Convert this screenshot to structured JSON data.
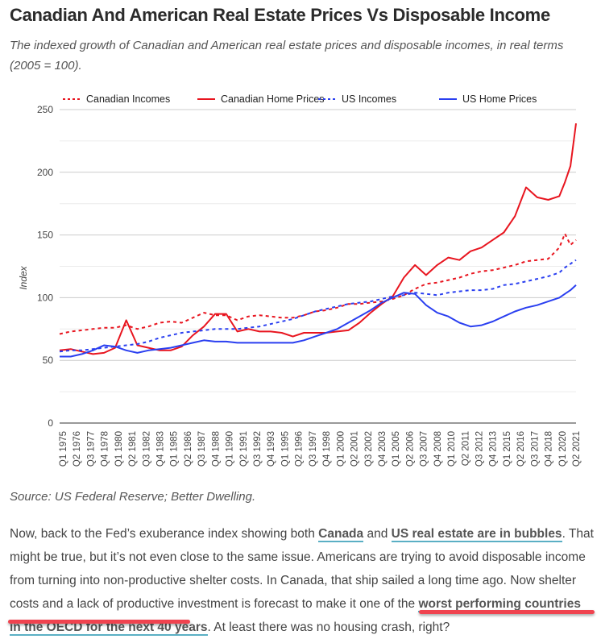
{
  "article": {
    "title": "Canadian And American Real Estate Prices Vs Disposable Income",
    "subtitle": "The indexed growth of Canadian and American real estate prices and disposable incomes, in real terms (2005 = 100).",
    "source": "Source: US Federal Reserve; Better Dwelling.",
    "paragraph": {
      "t1": "Now, back to the Fed’s exuberance index showing both ",
      "link1": "Canada",
      "t2": " and ",
      "link2": "US real estate are in bubbles",
      "t3": ". That might be true, but it’s not even close to the same issue. Americans are trying to avoid disposable income from turning into non-productive shelter costs. In Canada, that ship sailed a long time ago. Now shelter costs and a lack of productive investment is forecast to make it one of the ",
      "link3": "worst performing countries in the OECD for the next 40 years",
      "t4": ". At least there was no housing crash, right?"
    },
    "link_underline_color": "#5aafc4",
    "highlight_color": "#f0434f"
  },
  "chart_data": {
    "type": "line",
    "title": "",
    "xlabel": "",
    "ylabel": "Index",
    "ylim": [
      0,
      250
    ],
    "yticks": [
      0,
      50,
      100,
      150,
      200,
      250
    ],
    "minor_gridlines": [
      25,
      75,
      125,
      175,
      225
    ],
    "grid": true,
    "legend_position": "top",
    "xtick_labels": [
      "Q1 1975",
      "Q2 1976",
      "Q3 1977",
      "Q4 1978",
      "Q1 1980",
      "Q2 1981",
      "Q3 1982",
      "Q4 1983",
      "Q1 1985",
      "Q2 1986",
      "Q3 1987",
      "Q4 1988",
      "Q1 1990",
      "Q2 1991",
      "Q3 1992",
      "Q4 1993",
      "Q1 1995",
      "Q2 1996",
      "Q3 1997",
      "Q4 1998",
      "Q1 2000",
      "Q2 2001",
      "Q3 2002",
      "Q4 2003",
      "Q1 2005",
      "Q2 2006",
      "Q3 2007",
      "Q4 2008",
      "Q1 2010",
      "Q2 2011",
      "Q3 2012",
      "Q4 2013",
      "Q1 2015",
      "Q2 2016",
      "Q3 2017",
      "Q4 2018",
      "Q1 2020",
      "Q2 2021"
    ],
    "x": [
      1975,
      1976,
      1977,
      1978,
      1979,
      1980,
      1981,
      1982,
      1983,
      1984,
      1985,
      1986,
      1987,
      1988,
      1989,
      1990,
      1991,
      1992,
      1993,
      1994,
      1995,
      1996,
      1997,
      1998,
      1999,
      2000,
      2001,
      2002,
      2003,
      2004,
      2005,
      2006,
      2007,
      2008,
      2009,
      2010,
      2011,
      2012,
      2013,
      2014,
      2015,
      2016,
      2017,
      2018,
      2019,
      2020,
      2020.5,
      2021,
      2021.5
    ],
    "series": [
      {
        "name": "Canadian Incomes",
        "color": "#e8151f",
        "dash": true,
        "values": [
          71,
          73,
          74,
          75,
          76,
          76,
          78,
          75,
          77,
          80,
          81,
          80,
          84,
          88,
          86,
          86,
          82,
          85,
          86,
          85,
          84,
          84,
          86,
          89,
          90,
          92,
          95,
          95,
          96,
          97,
          99,
          102,
          107,
          111,
          112,
          114,
          116,
          119,
          121,
          122,
          124,
          126,
          129,
          130,
          131,
          140,
          151,
          142,
          146
        ]
      },
      {
        "name": "Canadian Home Prices",
        "color": "#e8151f",
        "dash": false,
        "values": [
          58,
          59,
          57,
          55,
          56,
          60,
          82,
          62,
          60,
          58,
          58,
          61,
          70,
          77,
          87,
          87,
          73,
          75,
          73,
          73,
          72,
          69,
          72,
          72,
          72,
          73,
          74,
          80,
          88,
          95,
          101,
          116,
          126,
          118,
          126,
          132,
          130,
          137,
          140,
          146,
          152,
          165,
          188,
          180,
          178,
          181,
          192,
          205,
          239
        ]
      },
      {
        "name": "US Incomes",
        "color": "#2a3ff0",
        "dash": true,
        "values": [
          57,
          58,
          58,
          59,
          60,
          61,
          62,
          63,
          65,
          68,
          70,
          72,
          73,
          74,
          75,
          75,
          75,
          76,
          77,
          79,
          81,
          83,
          86,
          89,
          91,
          93,
          95,
          96,
          97,
          99,
          101,
          102,
          104,
          103,
          102,
          104,
          105,
          106,
          106,
          107,
          110,
          111,
          113,
          115,
          117,
          120,
          124,
          127,
          130
        ]
      },
      {
        "name": "US Home Prices",
        "color": "#2a3ff0",
        "dash": false,
        "values": [
          53,
          53,
          55,
          58,
          62,
          61,
          58,
          56,
          58,
          59,
          60,
          62,
          64,
          66,
          65,
          65,
          64,
          64,
          64,
          64,
          64,
          64,
          66,
          69,
          72,
          75,
          80,
          85,
          90,
          96,
          100,
          104,
          103,
          94,
          88,
          85,
          80,
          77,
          78,
          81,
          85,
          89,
          92,
          94,
          97,
          100,
          103,
          106,
          110
        ]
      }
    ]
  }
}
